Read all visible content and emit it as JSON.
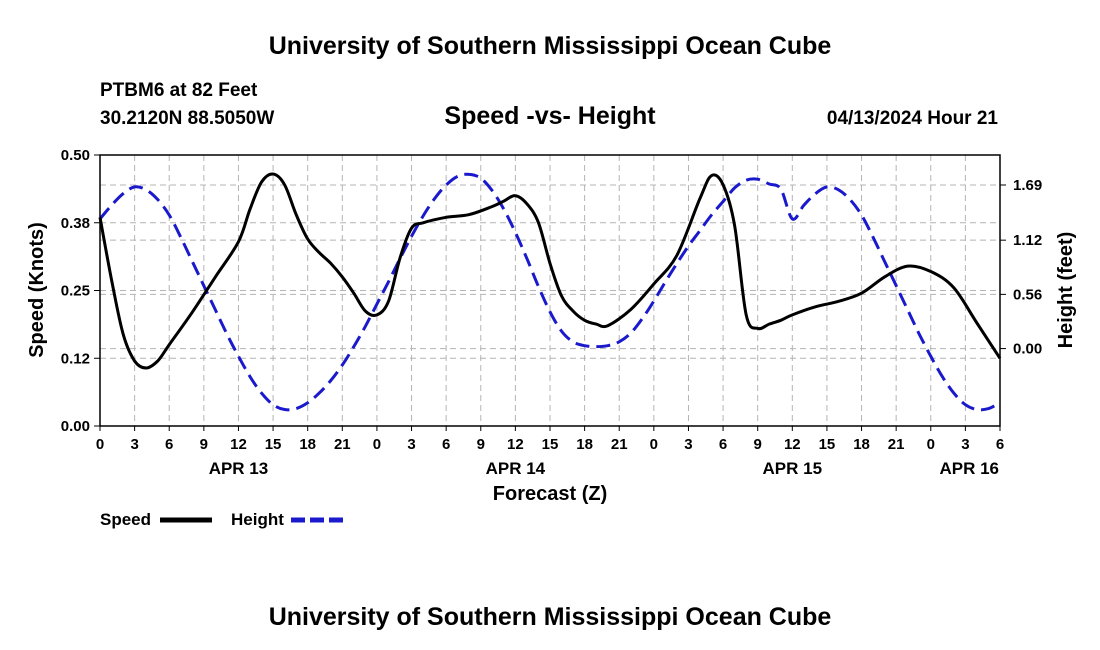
{
  "header": {
    "title": "University of Southern Mississippi Ocean Cube",
    "station": "PTBM6 at 82 Feet",
    "coords": "30.2120N  88.5050W",
    "chart_title": "Speed -vs- Height",
    "datetime": "04/13/2024 Hour 21"
  },
  "footer": {
    "title": "University of Southern Mississippi Ocean Cube"
  },
  "colors": {
    "speed": "#000000",
    "height": "#1a1acc",
    "grid": "#b4b4b4"
  },
  "chart_data": {
    "type": "line",
    "title": "Speed -vs- Height",
    "xlabel": "Forecast (Z)",
    "x_range_hours": [
      0,
      78
    ],
    "x_tick_step_hours": 3,
    "x_tick_labels": [
      "0",
      "3",
      "6",
      "9",
      "12",
      "15",
      "18",
      "21",
      "0",
      "3",
      "6",
      "9",
      "12",
      "15",
      "18",
      "21",
      "0",
      "3",
      "6",
      "9",
      "12",
      "15",
      "18",
      "21",
      "0",
      "3",
      "6"
    ],
    "date_labels": [
      {
        "label": "APR 13",
        "hour": 12
      },
      {
        "label": "APR 14",
        "hour": 36
      },
      {
        "label": "APR 15",
        "hour": 60
      },
      {
        "label": "APR 16",
        "hour": 78
      }
    ],
    "y_left": {
      "label": "Speed (Knots)",
      "ylim": [
        0,
        0.5
      ],
      "ticks": [
        0,
        0.125,
        0.25,
        0.375,
        0.5
      ],
      "tick_labels": [
        "0.00",
        "0.12",
        "0.25",
        "0.38",
        "0.50"
      ]
    },
    "y_right": {
      "label": "Height (feet)",
      "ylim": [
        -0.8,
        2.0
      ],
      "ticks": [
        0,
        0.56,
        1.12,
        1.69
      ],
      "tick_labels": [
        "0.00",
        "0.56",
        "1.12",
        "1.69"
      ]
    },
    "series": [
      {
        "name": "Speed",
        "axis": "left",
        "style": "solid",
        "x": [
          0,
          1,
          2,
          3,
          4,
          5,
          6,
          8,
          10,
          12,
          13,
          14,
          15,
          16,
          17,
          18,
          19,
          20,
          21,
          22,
          23,
          24,
          25,
          26,
          27,
          28,
          30,
          32,
          34,
          35,
          36,
          37,
          38,
          39,
          40,
          41,
          42,
          43,
          44,
          46,
          48,
          50,
          52,
          53,
          54,
          55,
          56,
          57,
          58,
          59,
          60,
          62,
          64,
          66,
          68,
          70,
          72,
          74,
          76,
          78
        ],
        "values": [
          0.385,
          0.27,
          0.17,
          0.12,
          0.107,
          0.12,
          0.15,
          0.21,
          0.275,
          0.34,
          0.4,
          0.45,
          0.465,
          0.445,
          0.39,
          0.345,
          0.32,
          0.3,
          0.275,
          0.245,
          0.212,
          0.205,
          0.23,
          0.31,
          0.365,
          0.375,
          0.385,
          0.39,
          0.405,
          0.415,
          0.425,
          0.41,
          0.375,
          0.3,
          0.24,
          0.212,
          0.195,
          0.188,
          0.185,
          0.215,
          0.262,
          0.315,
          0.42,
          0.462,
          0.445,
          0.37,
          0.205,
          0.18,
          0.188,
          0.195,
          0.205,
          0.22,
          0.23,
          0.245,
          0.275,
          0.295,
          0.285,
          0.255,
          0.19,
          0.125
        ]
      },
      {
        "name": "Height",
        "axis": "right",
        "style": "dashed",
        "x": [
          0,
          1,
          2,
          3,
          4,
          5,
          6,
          7,
          8,
          9,
          10,
          11,
          12,
          13,
          14,
          15,
          16,
          17,
          18,
          19,
          20,
          21,
          22,
          23,
          24,
          25,
          26,
          27,
          28,
          29,
          30,
          31,
          32,
          33,
          34,
          35,
          36,
          37,
          38,
          39,
          40,
          41,
          42,
          43,
          44,
          45,
          46,
          47,
          48,
          49,
          50,
          51,
          52,
          53,
          54,
          55,
          56,
          57,
          58,
          59,
          60,
          61,
          62,
          63,
          64,
          65,
          66,
          67,
          68,
          69,
          70,
          71,
          72,
          73,
          74,
          75,
          76,
          77,
          78
        ],
        "values": [
          1.34,
          1.48,
          1.6,
          1.67,
          1.64,
          1.54,
          1.38,
          1.15,
          0.9,
          0.65,
          0.4,
          0.15,
          -0.08,
          -0.29,
          -0.46,
          -0.58,
          -0.63,
          -0.62,
          -0.56,
          -0.46,
          -0.33,
          -0.17,
          0.02,
          0.23,
          0.46,
          0.69,
          0.93,
          1.16,
          1.37,
          1.55,
          1.69,
          1.78,
          1.8,
          1.76,
          1.63,
          1.44,
          1.2,
          0.93,
          0.64,
          0.38,
          0.18,
          0.07,
          0.03,
          0.02,
          0.03,
          0.07,
          0.16,
          0.31,
          0.49,
          0.69,
          0.88,
          1.06,
          1.22,
          1.38,
          1.52,
          1.66,
          1.74,
          1.75,
          1.7,
          1.65,
          1.34,
          1.48,
          1.6,
          1.67,
          1.64,
          1.54,
          1.38,
          1.15,
          0.9,
          0.65,
          0.4,
          0.15,
          -0.08,
          -0.29,
          -0.46,
          -0.58,
          -0.63,
          -0.62,
          -0.56
        ]
      }
    ],
    "legend": [
      {
        "label": "Speed",
        "style": "solid"
      },
      {
        "label": "Height",
        "style": "dashed"
      }
    ]
  }
}
